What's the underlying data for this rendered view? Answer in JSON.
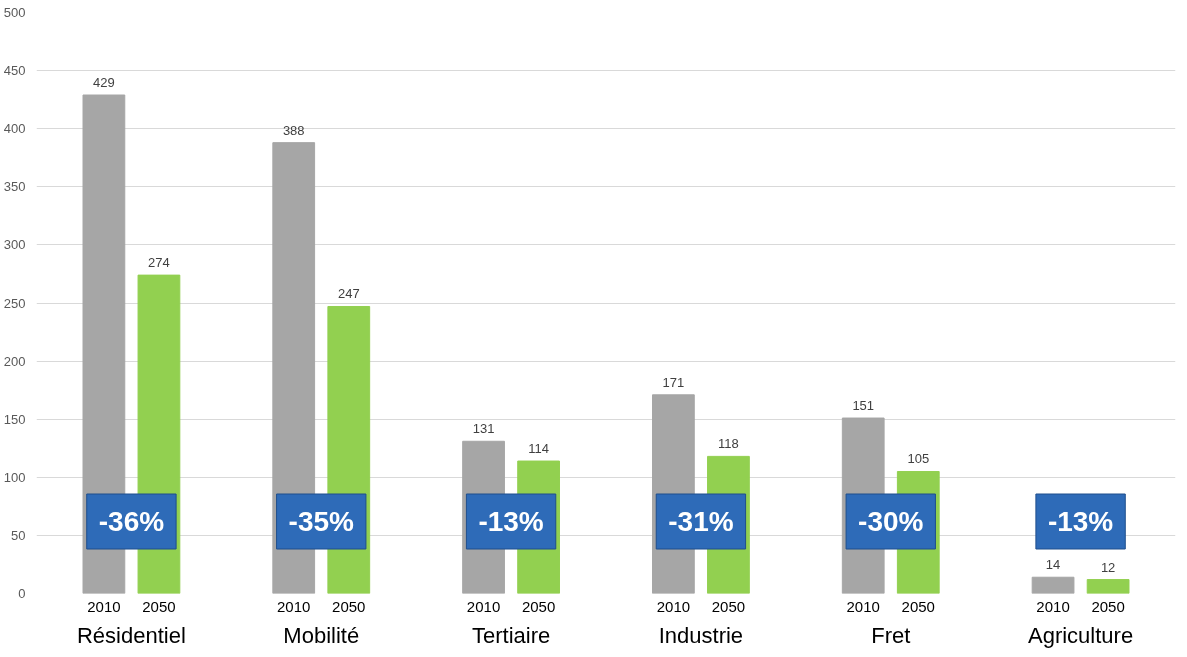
{
  "chart_data": {
    "type": "bar",
    "categories": [
      "Résidentiel",
      "Mobilité",
      "Tertiaire",
      "Industrie",
      "Fret",
      "Agriculture"
    ],
    "series": [
      {
        "name": "2010",
        "color": "#a6a6a6",
        "values": [
          429,
          388,
          131,
          171,
          151,
          14
        ]
      },
      {
        "name": "2050",
        "color": "#92d050",
        "values": [
          274,
          247,
          114,
          118,
          105,
          12
        ]
      }
    ],
    "ylim": [
      0,
      500
    ],
    "yticks": [
      0,
      50,
      100,
      150,
      200,
      250,
      300,
      350,
      400,
      450,
      500
    ],
    "grid": "y",
    "data_labels": true,
    "annotations": [
      "-36%",
      "-35%",
      "-13%",
      "-31%",
      "-30%",
      "-13%"
    ]
  }
}
